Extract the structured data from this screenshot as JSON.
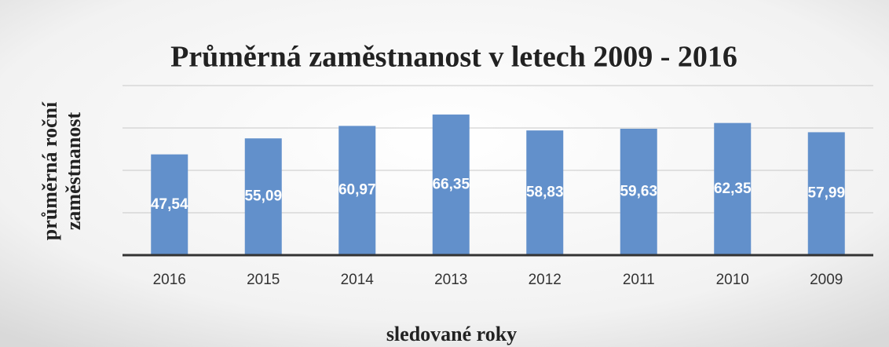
{
  "chart_data": {
    "type": "bar",
    "title": "Průměrná zaměstnanost v letech 2009 - 2016",
    "ylabel": [
      "průměrná roční",
      "zaměstnanost"
    ],
    "xlabel": "sledované roky",
    "categories": [
      "2016",
      "2015",
      "2014",
      "2013",
      "2012",
      "2011",
      "2010",
      "2009"
    ],
    "values": [
      47.54,
      55.09,
      60.97,
      66.35,
      58.83,
      59.63,
      62.35,
      57.99
    ],
    "value_labels": [
      "47,54",
      "55,09",
      "60,97",
      "66,35",
      "58,83",
      "59,63",
      "62,35",
      "57,99"
    ],
    "color": "#6290cb",
    "ylim": [
      0,
      80
    ],
    "yticks": [
      0,
      20,
      40,
      60,
      80
    ],
    "grid": true
  }
}
